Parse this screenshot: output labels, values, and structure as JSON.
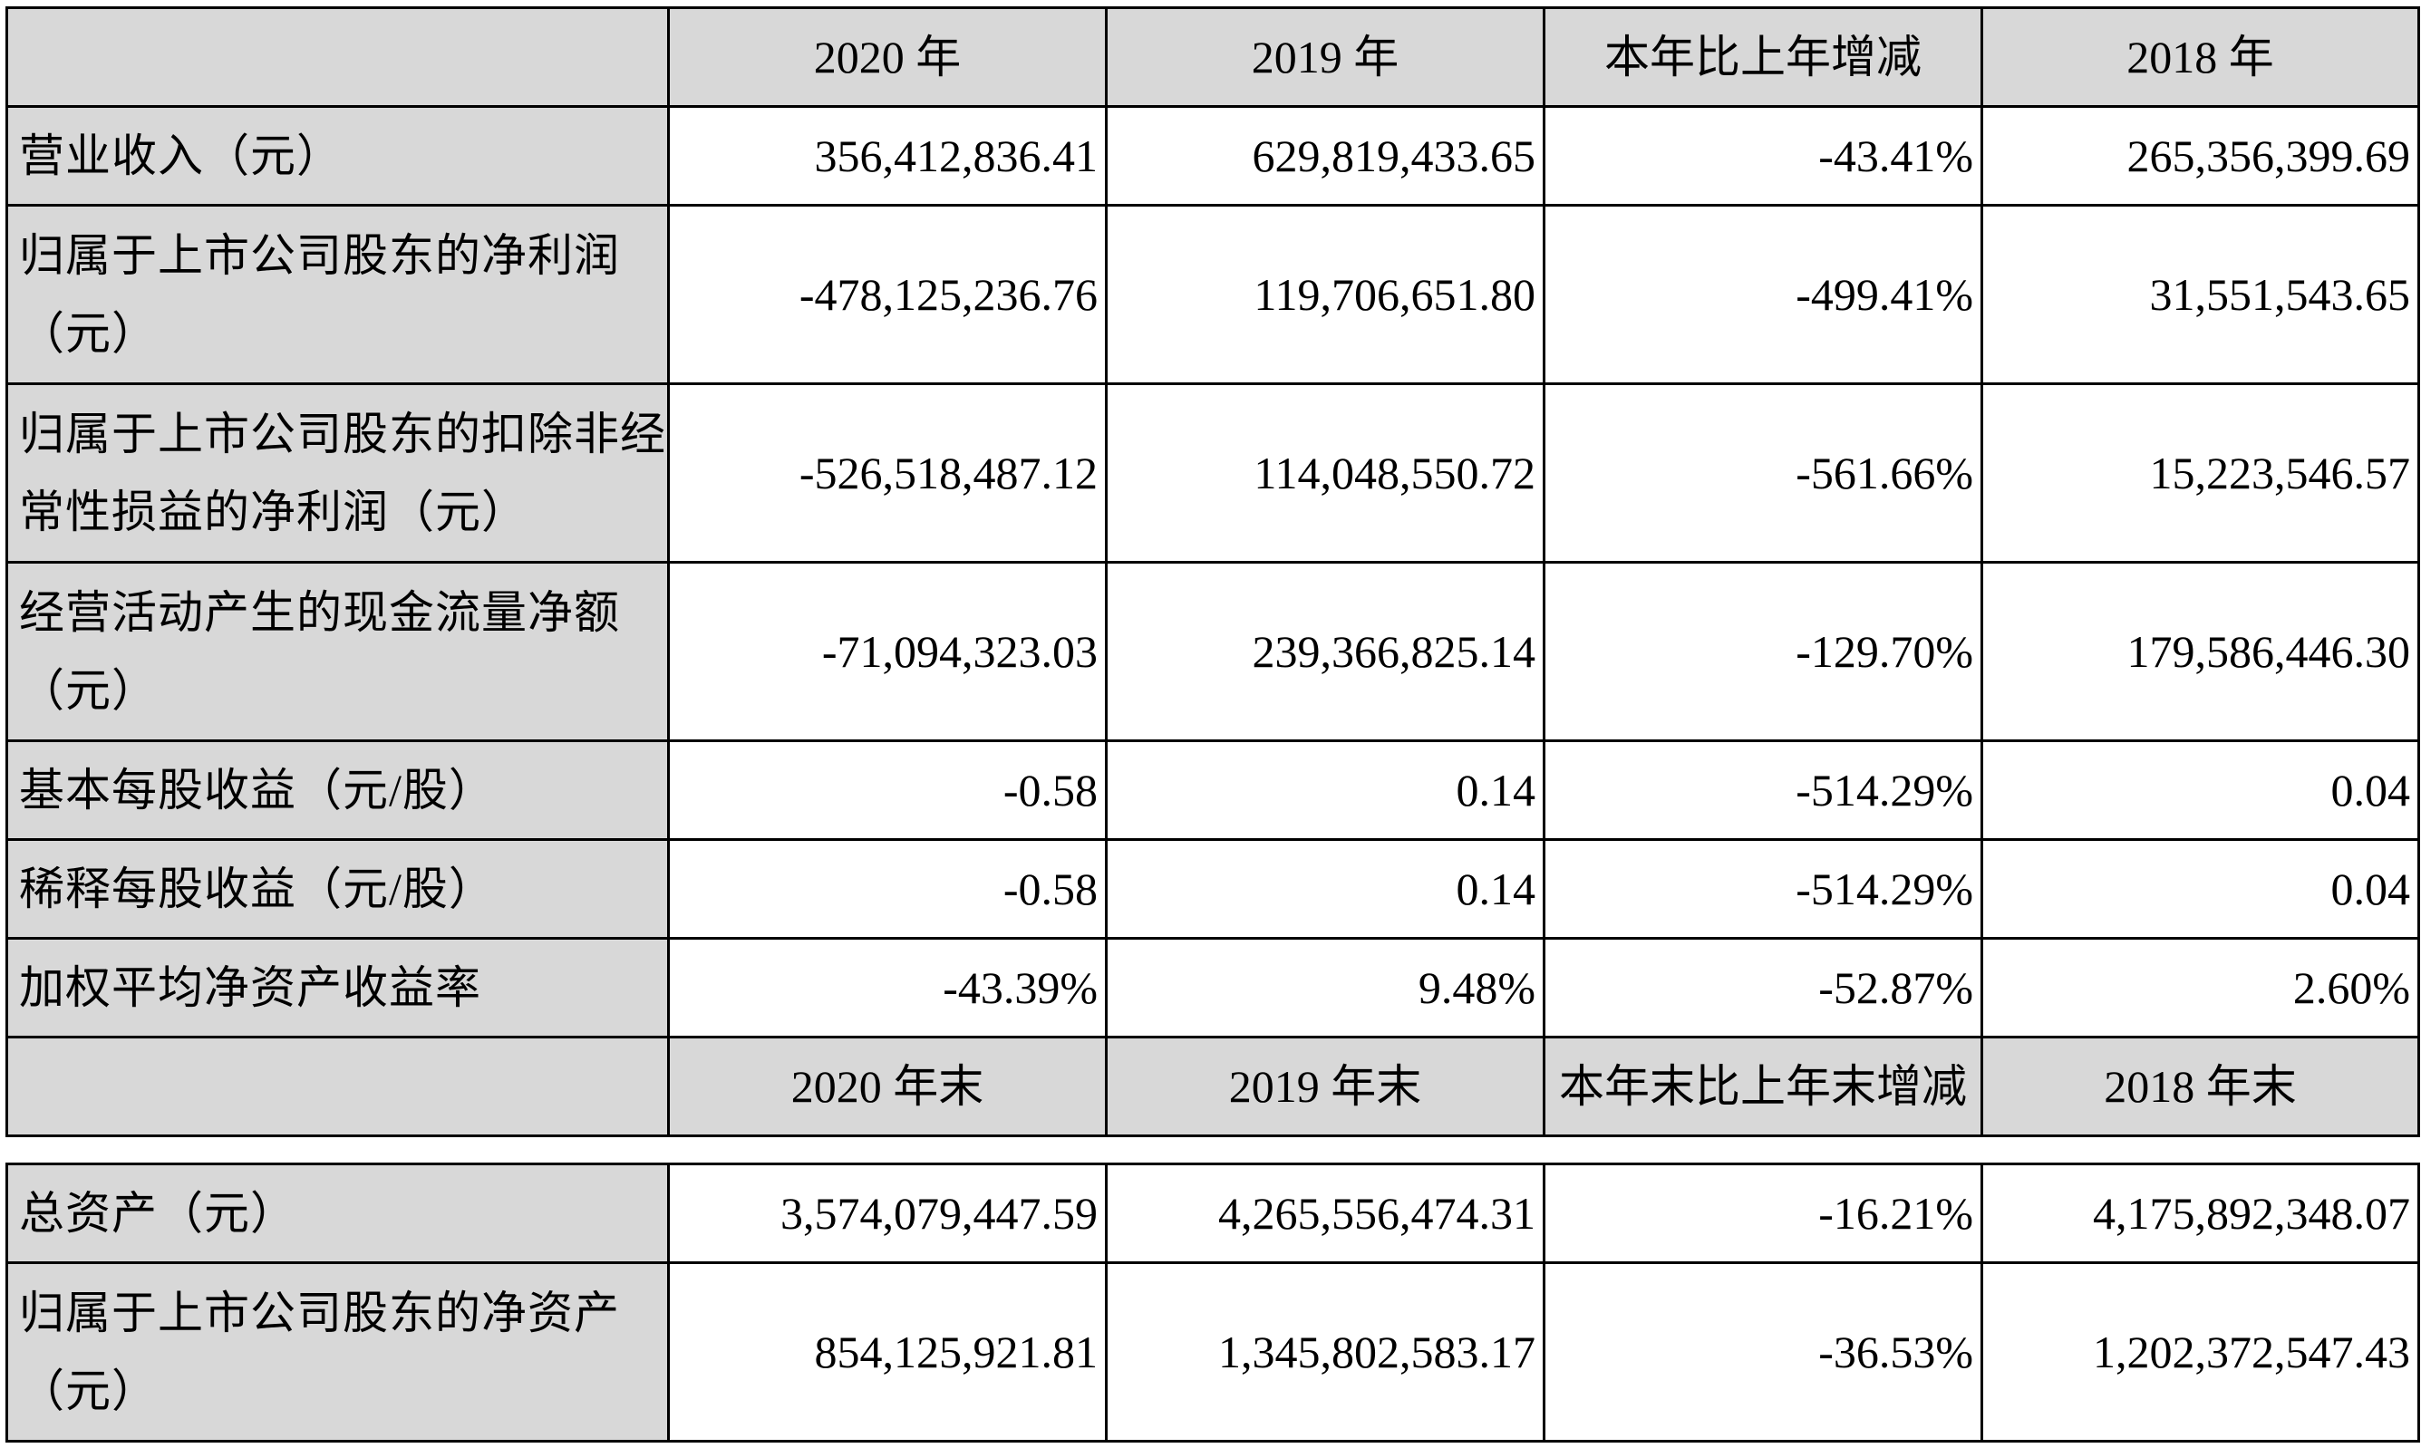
{
  "table_top": {
    "header": [
      "",
      "2020 年",
      "2019 年",
      "本年比上年增减",
      "2018 年"
    ],
    "rows": [
      {
        "label": "营业收入（元）",
        "values": [
          "356,412,836.41",
          "629,819,433.65",
          "-43.41%",
          "265,356,399.69"
        ]
      },
      {
        "label": "归属于上市公司股东的净利润（元）",
        "values": [
          "-478,125,236.76",
          "119,706,651.80",
          "-499.41%",
          "31,551,543.65"
        ]
      },
      {
        "label": "归属于上市公司股东的扣除非经常性损益的净利润（元）",
        "values": [
          "-526,518,487.12",
          "114,048,550.72",
          "-561.66%",
          "15,223,546.57"
        ]
      },
      {
        "label": "经营活动产生的现金流量净额（元）",
        "values": [
          "-71,094,323.03",
          "239,366,825.14",
          "-129.70%",
          "179,586,446.30"
        ]
      },
      {
        "label": "基本每股收益（元/股）",
        "values": [
          "-0.58",
          "0.14",
          "-514.29%",
          "0.04"
        ]
      },
      {
        "label": "稀释每股收益（元/股）",
        "values": [
          "-0.58",
          "0.14",
          "-514.29%",
          "0.04"
        ]
      },
      {
        "label": "加权平均净资产收益率",
        "values": [
          "-43.39%",
          "9.48%",
          "-52.87%",
          "2.60%"
        ]
      }
    ],
    "header2": [
      "",
      "2020 年末",
      "2019 年末",
      "本年末比上年末增减",
      "2018 年末"
    ]
  },
  "table_bottom": {
    "rows": [
      {
        "label": "总资产（元）",
        "values": [
          "3,574,079,447.59",
          "4,265,556,474.31",
          "-16.21%",
          "4,175,892,348.07"
        ]
      },
      {
        "label": "归属于上市公司股东的净资产（元）",
        "values": [
          "854,125,921.81",
          "1,345,802,583.17",
          "-36.53%",
          "1,202,372,547.43"
        ]
      }
    ]
  }
}
